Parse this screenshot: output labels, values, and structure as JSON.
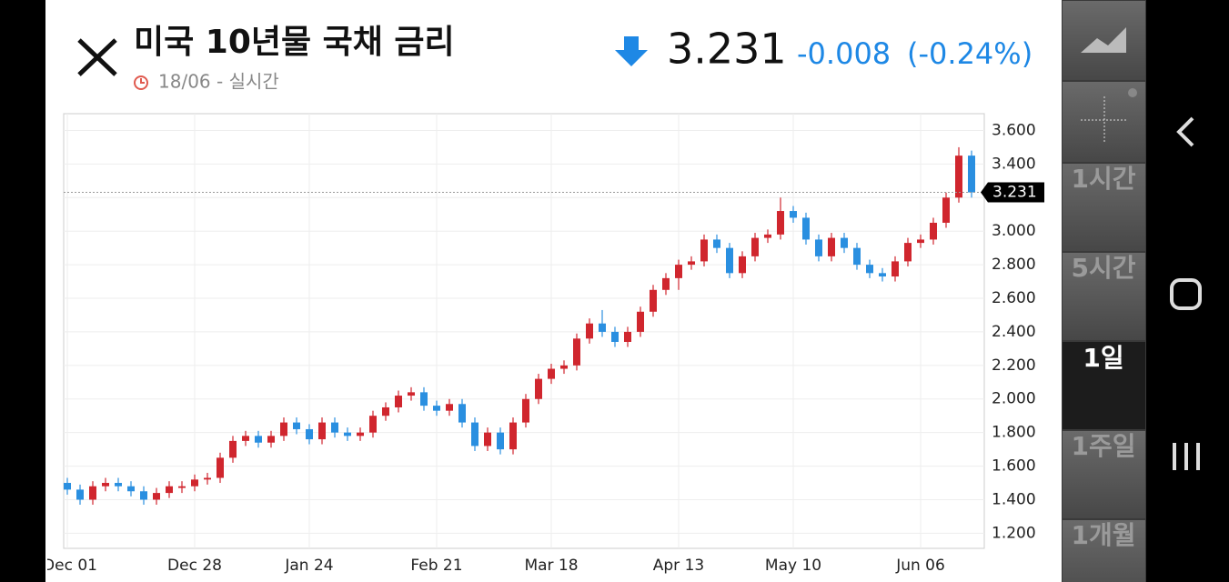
{
  "header": {
    "title": "미국 10년물 국채 금리",
    "subtitle": "18/06 - 실시간",
    "price": "3.231",
    "change": "-0.008",
    "change_percent": "(-0.24%)"
  },
  "intervals": [
    "1시간",
    "5시간",
    "1일",
    "1주일",
    "1개월"
  ],
  "chart_data": {
    "type": "candlestick",
    "up_color": "#d0262e",
    "down_color": "#2a8fe0",
    "grid": true,
    "categories": [
      "Dec 01",
      null,
      null,
      null,
      null,
      null,
      null,
      null,
      null,
      null,
      "Dec 28",
      null,
      null,
      null,
      null,
      null,
      null,
      null,
      null,
      "Jan 24",
      null,
      null,
      null,
      null,
      null,
      null,
      null,
      null,
      null,
      "Feb 21",
      null,
      null,
      null,
      null,
      null,
      null,
      null,
      null,
      "Mar 18",
      null,
      null,
      null,
      null,
      null,
      null,
      null,
      null,
      null,
      "Apr 13",
      null,
      null,
      null,
      null,
      null,
      null,
      null,
      null,
      "May 10",
      null,
      null,
      null,
      null,
      null,
      null,
      null,
      null,
      null,
      "Jun 06",
      null,
      null,
      null,
      null
    ],
    "open": [
      1.5,
      1.46,
      1.4,
      1.48,
      1.5,
      1.48,
      1.45,
      1.4,
      1.44,
      1.47,
      1.48,
      1.52,
      1.53,
      1.65,
      1.75,
      1.78,
      1.74,
      1.78,
      1.86,
      1.82,
      1.76,
      1.86,
      1.8,
      1.78,
      1.8,
      1.9,
      1.95,
      2.02,
      2.04,
      1.96,
      1.93,
      1.97,
      1.86,
      1.72,
      1.8,
      1.7,
      1.86,
      2.0,
      2.12,
      2.18,
      2.2,
      2.36,
      2.45,
      2.4,
      2.34,
      2.4,
      2.52,
      2.65,
      2.72,
      2.8,
      2.82,
      2.95,
      2.9,
      2.75,
      2.85,
      2.96,
      2.98,
      3.12,
      3.08,
      2.95,
      2.85,
      2.96,
      2.9,
      2.8,
      2.75,
      2.73,
      2.82,
      2.93,
      2.95,
      3.05,
      3.2,
      3.45
    ],
    "high": [
      1.53,
      1.49,
      1.51,
      1.53,
      1.53,
      1.51,
      1.48,
      1.47,
      1.51,
      1.51,
      1.55,
      1.56,
      1.68,
      1.78,
      1.81,
      1.81,
      1.81,
      1.89,
      1.89,
      1.85,
      1.89,
      1.89,
      1.83,
      1.83,
      1.93,
      1.98,
      2.05,
      2.07,
      2.07,
      1.99,
      2.0,
      2.0,
      1.89,
      1.83,
      1.83,
      1.89,
      2.03,
      2.15,
      2.21,
      2.23,
      2.39,
      2.48,
      2.53,
      2.43,
      2.43,
      2.55,
      2.68,
      2.75,
      2.83,
      2.85,
      2.98,
      2.98,
      2.93,
      2.88,
      2.99,
      3.01,
      3.2,
      3.15,
      3.11,
      2.98,
      2.99,
      2.99,
      2.93,
      2.83,
      2.78,
      2.85,
      2.96,
      2.98,
      3.08,
      3.23,
      3.5,
      3.48
    ],
    "low": [
      1.43,
      1.37,
      1.37,
      1.45,
      1.45,
      1.42,
      1.37,
      1.37,
      1.41,
      1.44,
      1.45,
      1.49,
      1.5,
      1.62,
      1.72,
      1.71,
      1.71,
      1.75,
      1.79,
      1.73,
      1.73,
      1.77,
      1.75,
      1.75,
      1.77,
      1.87,
      1.92,
      1.99,
      1.93,
      1.9,
      1.9,
      1.83,
      1.69,
      1.69,
      1.67,
      1.67,
      1.83,
      1.97,
      2.09,
      2.15,
      2.17,
      2.33,
      2.37,
      2.31,
      2.31,
      2.37,
      2.49,
      2.62,
      2.65,
      2.77,
      2.79,
      2.87,
      2.72,
      2.72,
      2.82,
      2.93,
      2.95,
      3.05,
      2.92,
      2.82,
      2.82,
      2.87,
      2.77,
      2.72,
      2.7,
      2.7,
      2.79,
      2.9,
      2.92,
      3.02,
      3.17,
      3.2
    ],
    "close": [
      1.46,
      1.4,
      1.48,
      1.5,
      1.48,
      1.45,
      1.4,
      1.44,
      1.48,
      1.48,
      1.52,
      1.53,
      1.65,
      1.75,
      1.78,
      1.74,
      1.78,
      1.86,
      1.82,
      1.76,
      1.86,
      1.8,
      1.78,
      1.8,
      1.9,
      1.95,
      2.02,
      2.04,
      1.96,
      1.93,
      1.97,
      1.86,
      1.72,
      1.8,
      1.7,
      1.86,
      2.0,
      2.12,
      2.18,
      2.2,
      2.36,
      2.45,
      2.4,
      2.34,
      2.4,
      2.52,
      2.65,
      2.72,
      2.8,
      2.82,
      2.95,
      2.9,
      2.75,
      2.85,
      2.96,
      2.98,
      3.12,
      3.08,
      2.95,
      2.85,
      2.96,
      2.9,
      2.8,
      2.75,
      2.73,
      2.82,
      2.93,
      2.95,
      3.05,
      3.2,
      3.45,
      3.231
    ],
    "ylim": [
      1.11,
      3.7
    ],
    "yticks": [
      {
        "value": 1.2,
        "label": "1.200"
      },
      {
        "value": 1.4,
        "label": "1.400"
      },
      {
        "value": 1.6,
        "label": "1.600"
      },
      {
        "value": 1.8,
        "label": "1.800"
      },
      {
        "value": 2.0,
        "label": "2.000"
      },
      {
        "value": 2.2,
        "label": "2.200"
      },
      {
        "value": 2.4,
        "label": "2.400"
      },
      {
        "value": 2.6,
        "label": "2.600"
      },
      {
        "value": 2.8,
        "label": "2.800"
      },
      {
        "value": 3.0,
        "label": "3.000"
      },
      {
        "value": 3.2,
        "label": "3.200"
      },
      {
        "value": 3.4,
        "label": "3.400"
      },
      {
        "value": 3.6,
        "label": "3.600"
      }
    ]
  }
}
